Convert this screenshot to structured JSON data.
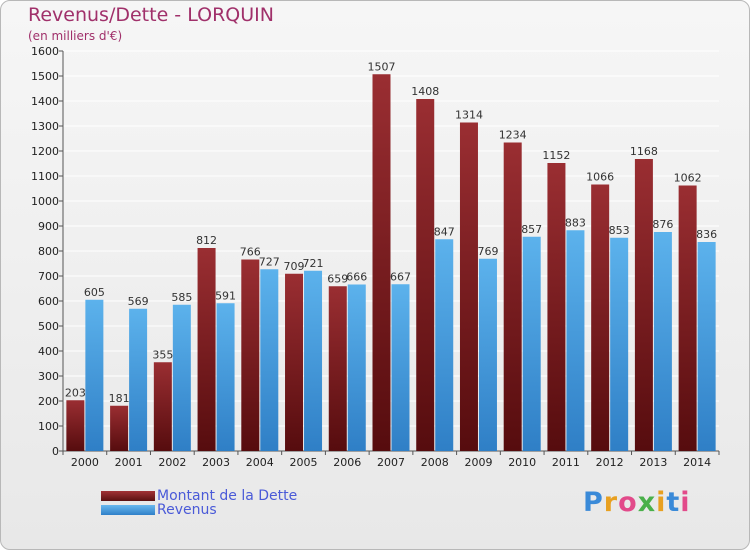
{
  "header": {
    "title": "Revenus/Dette - LORQUIN",
    "subtitle": "(en milliers d'€)"
  },
  "colors": {
    "series1": "#7a1f22",
    "series2": "#4fa5e2",
    "title": "#a0306a",
    "legend_text": "#4a5ad8"
  },
  "chart_data": {
    "type": "bar",
    "title": "Revenus/Dette - LORQUIN",
    "subtitle": "(en milliers d'€)",
    "categories": [
      "2000",
      "2001",
      "2002",
      "2003",
      "2004",
      "2005",
      "2006",
      "2007",
      "2008",
      "2009",
      "2010",
      "2011",
      "2012",
      "2013",
      "2014"
    ],
    "series": [
      {
        "name": "Montant de la Dette",
        "values": [
          203,
          181,
          355,
          812,
          766,
          709,
          659,
          1507,
          1408,
          1314,
          1234,
          1152,
          1066,
          1168,
          1062
        ]
      },
      {
        "name": "Revenus",
        "values": [
          605,
          569,
          585,
          591,
          727,
          721,
          666,
          667,
          847,
          769,
          857,
          883,
          853,
          876,
          836
        ]
      }
    ],
    "ylim": [
      0,
      1600
    ],
    "ytick_step": 100,
    "grid": true,
    "legend": "bottom-left"
  },
  "legend": {
    "items": [
      {
        "label": "Montant de la Dette",
        "color": "#7a1f22"
      },
      {
        "label": "Revenus",
        "color": "#4fa5e2"
      }
    ]
  },
  "logo": {
    "letters": [
      "P",
      "r",
      "o",
      "x",
      "i",
      "t",
      "i"
    ],
    "colors": [
      "#3a8ad8",
      "#e8a020",
      "#e24a8a",
      "#4ab04a",
      "#e8a020",
      "#3a8ad8",
      "#e24a8a"
    ]
  }
}
